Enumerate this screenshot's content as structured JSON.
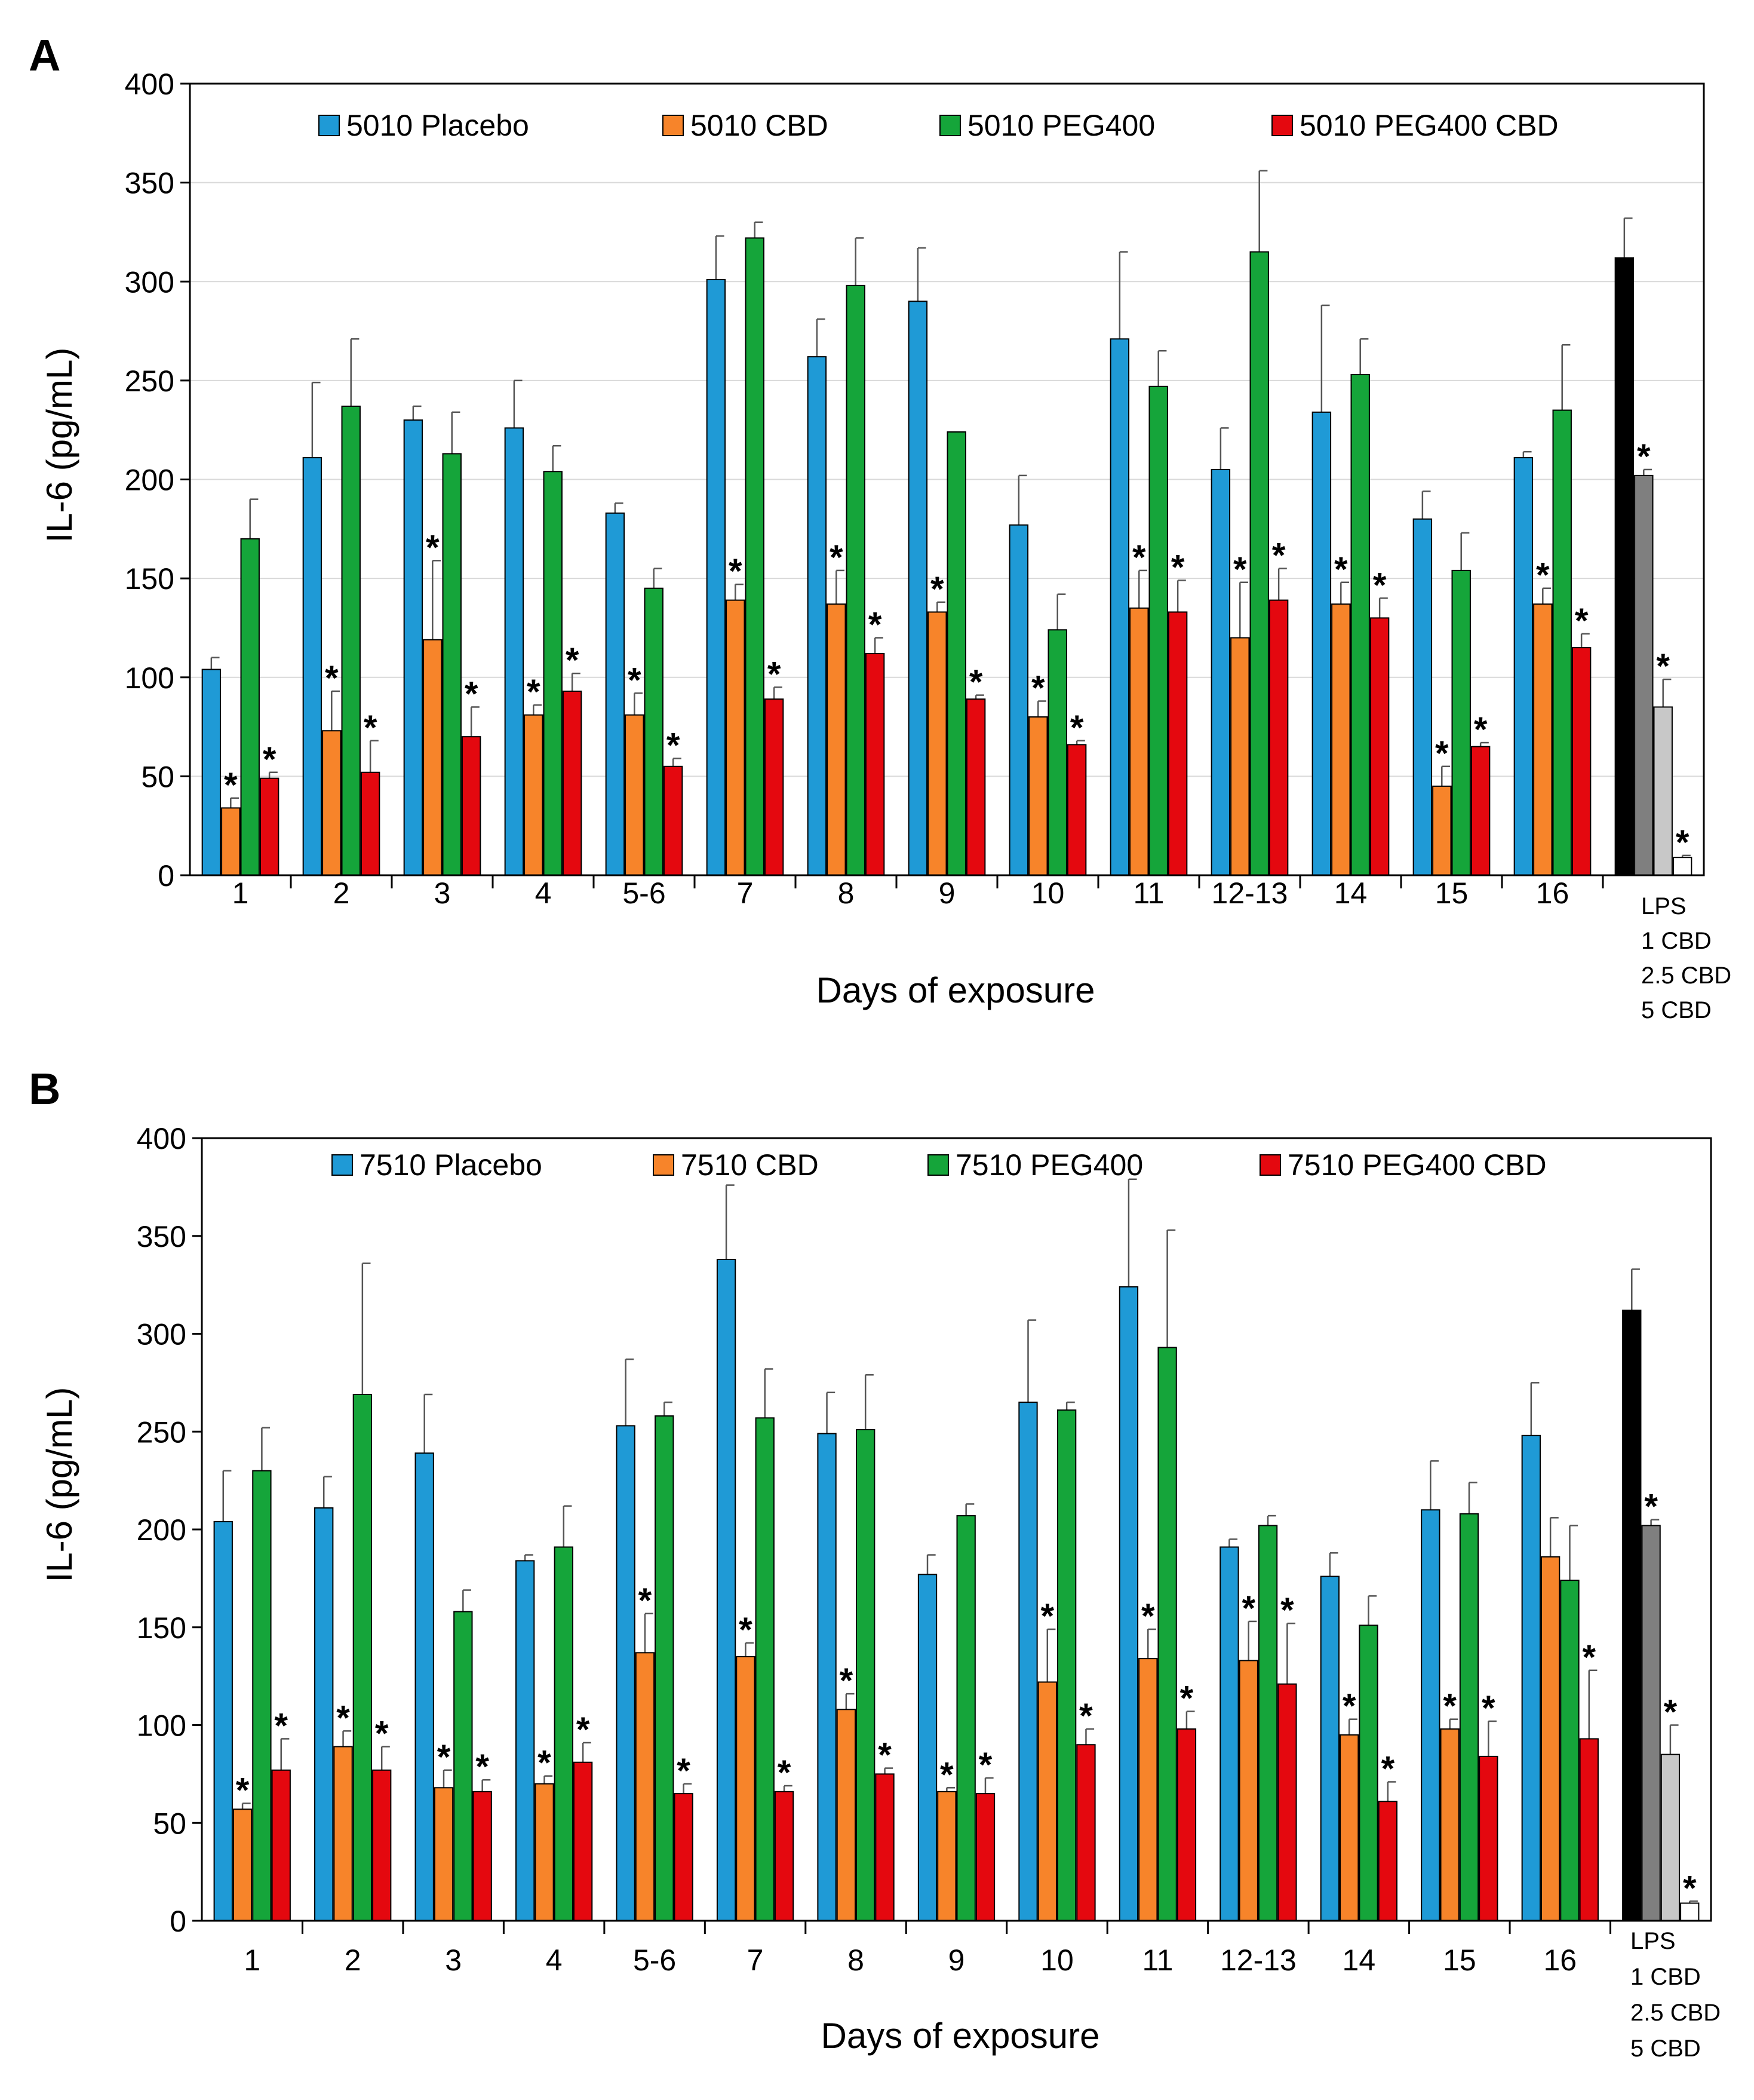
{
  "panels": [
    "A",
    "B"
  ],
  "colors": {
    "placebo": "#1f9ad6",
    "cbd": "#f7842a",
    "peg400": "#15a53a",
    "peg400_cbd": "#e4080f",
    "lps": "#000000",
    "cbd1": "#7f7f7f",
    "cbd2_5": "#c8c8c8",
    "cbd5": "#ffffff",
    "axis": "#000000",
    "grid": "#d9d9d9"
  },
  "chart_data": [
    {
      "panel": "A",
      "type": "bar",
      "ylabel": "IL-6 (pg/mL)",
      "xlabel": "Days of exposure",
      "ylim": [
        0,
        400
      ],
      "yticks": [
        "0",
        "50",
        "100",
        "150",
        "200",
        "250",
        "300",
        "350",
        "400"
      ],
      "grid": true,
      "legend_position": "top",
      "categories": [
        "1",
        "2",
        "3",
        "4",
        "5-6",
        "7",
        "8",
        "9",
        "10",
        "11",
        "12-13",
        "14",
        "15",
        "16"
      ],
      "series": [
        {
          "name": "5010 Placebo",
          "color_key": "placebo",
          "values": [
            104,
            211,
            230,
            226,
            183,
            301,
            262,
            290,
            177,
            271,
            205,
            234,
            180,
            211
          ],
          "errors": [
            6,
            38,
            7,
            24,
            5,
            22,
            19,
            27,
            25,
            44,
            21,
            54,
            14,
            3
          ],
          "significant": [
            false,
            false,
            false,
            false,
            false,
            false,
            false,
            false,
            false,
            false,
            false,
            false,
            false,
            false
          ]
        },
        {
          "name": "5010 CBD",
          "color_key": "cbd",
          "values": [
            34,
            73,
            119,
            81,
            81,
            139,
            137,
            133,
            80,
            135,
            120,
            137,
            45,
            137
          ],
          "errors": [
            5,
            20,
            40,
            5,
            11,
            8,
            17,
            5,
            8,
            19,
            28,
            11,
            10,
            8
          ],
          "significant": [
            true,
            true,
            true,
            true,
            true,
            true,
            true,
            true,
            true,
            true,
            true,
            true,
            true,
            true
          ]
        },
        {
          "name": "5010 PEG400",
          "color_key": "peg400",
          "values": [
            170,
            237,
            213,
            204,
            145,
            322,
            298,
            224,
            124,
            247,
            315,
            253,
            154,
            235
          ],
          "errors": [
            20,
            34,
            21,
            13,
            10,
            8,
            24,
            0,
            18,
            18,
            41,
            18,
            19,
            33
          ],
          "significant": [
            false,
            false,
            false,
            false,
            false,
            false,
            false,
            false,
            false,
            false,
            false,
            false,
            false,
            false
          ]
        },
        {
          "name": "5010 PEG400 CBD",
          "color_key": "peg400_cbd",
          "values": [
            49,
            52,
            70,
            93,
            55,
            89,
            112,
            89,
            66,
            133,
            139,
            130,
            65,
            115
          ],
          "errors": [
            3,
            16,
            15,
            9,
            4,
            6,
            8,
            2,
            2,
            16,
            16,
            10,
            2,
            7
          ],
          "significant": [
            true,
            true,
            true,
            true,
            true,
            true,
            true,
            true,
            true,
            true,
            true,
            true,
            true,
            true
          ]
        }
      ],
      "controls": {
        "labels": [
          "LPS",
          "1 CBD",
          "2.5 CBD",
          "5 CBD"
        ],
        "color_keys": [
          "lps",
          "cbd1",
          "cbd2_5",
          "cbd5"
        ],
        "values": [
          312,
          202,
          85,
          9
        ],
        "errors": [
          20,
          3,
          14,
          1
        ],
        "significant": [
          false,
          true,
          true,
          true
        ]
      },
      "significance_marker": "*"
    },
    {
      "panel": "B",
      "type": "bar",
      "ylabel": "IL-6 (pg/mL)",
      "xlabel": "Days of exposure",
      "ylim": [
        0,
        400
      ],
      "yticks": [
        "0",
        "50",
        "100",
        "150",
        "200",
        "250",
        "300",
        "350",
        "400"
      ],
      "grid": false,
      "legend_position": "top",
      "categories": [
        "1",
        "2",
        "3",
        "4",
        "5-6",
        "7",
        "8",
        "9",
        "10",
        "11",
        "12-13",
        "14",
        "15",
        "16"
      ],
      "series": [
        {
          "name": "7510 Placebo",
          "color_key": "placebo",
          "values": [
            204,
            211,
            239,
            184,
            253,
            338,
            249,
            177,
            265,
            324,
            191,
            176,
            210,
            248
          ],
          "errors": [
            26,
            16,
            30,
            3,
            34,
            38,
            21,
            10,
            42,
            55,
            4,
            12,
            25,
            27
          ],
          "significant": [
            false,
            false,
            false,
            false,
            false,
            false,
            false,
            false,
            false,
            false,
            false,
            false,
            false,
            false
          ]
        },
        {
          "name": "7510 CBD",
          "color_key": "cbd",
          "values": [
            57,
            89,
            68,
            70,
            137,
            135,
            108,
            66,
            122,
            134,
            133,
            95,
            98,
            186
          ],
          "errors": [
            3,
            8,
            9,
            4,
            20,
            7,
            8,
            2,
            27,
            15,
            20,
            8,
            5,
            20
          ],
          "significant": [
            true,
            true,
            true,
            true,
            true,
            true,
            true,
            true,
            true,
            true,
            true,
            true,
            true,
            false
          ]
        },
        {
          "name": "7510 PEG400",
          "color_key": "peg400",
          "values": [
            230,
            269,
            158,
            191,
            258,
            257,
            251,
            207,
            261,
            293,
            202,
            151,
            208,
            174
          ],
          "errors": [
            22,
            67,
            11,
            21,
            7,
            25,
            28,
            6,
            4,
            60,
            5,
            15,
            16,
            28
          ],
          "significant": [
            false,
            false,
            false,
            false,
            false,
            false,
            false,
            false,
            false,
            false,
            false,
            false,
            false,
            false
          ]
        },
        {
          "name": "7510 PEG400 CBD",
          "color_key": "peg400_cbd",
          "values": [
            77,
            77,
            66,
            81,
            65,
            66,
            75,
            65,
            90,
            98,
            121,
            61,
            84,
            93
          ],
          "errors": [
            16,
            12,
            6,
            10,
            5,
            3,
            3,
            8,
            8,
            9,
            31,
            10,
            18,
            35
          ],
          "significant": [
            true,
            true,
            true,
            true,
            true,
            true,
            true,
            true,
            true,
            true,
            true,
            true,
            true,
            true
          ]
        }
      ],
      "controls": {
        "labels": [
          "LPS",
          "1 CBD",
          "2.5 CBD",
          "5 CBD"
        ],
        "color_keys": [
          "lps",
          "cbd1",
          "cbd2_5",
          "cbd5"
        ],
        "values": [
          312,
          202,
          85,
          9
        ],
        "errors": [
          21,
          3,
          15,
          1
        ],
        "significant": [
          false,
          true,
          true,
          true
        ]
      },
      "significance_marker": "*"
    }
  ]
}
